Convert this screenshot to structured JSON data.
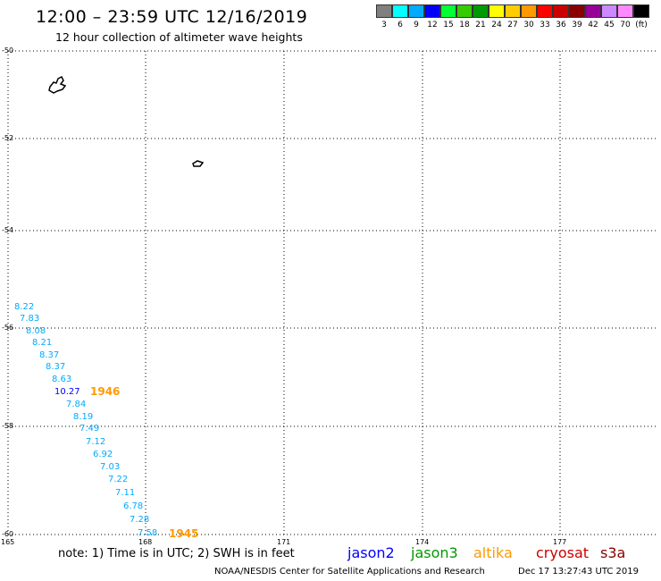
{
  "title": "12:00 – 23:59 UTC 12/16/2019",
  "subtitle": "12 hour collection of altimeter wave heights",
  "legend": {
    "colors": [
      "#808080",
      "#00ffff",
      "#00aaff",
      "#0000ff",
      "#00ff33",
      "#33cc00",
      "#009900",
      "#ffff00",
      "#ffcc00",
      "#ff9900",
      "#ff0000",
      "#cc0000",
      "#880000",
      "#990099",
      "#cc88ff",
      "#ff88ff",
      "#000000"
    ],
    "labels": [
      "3",
      "6",
      "9",
      "12",
      "15",
      "18",
      "21",
      "24",
      "27",
      "30",
      "33",
      "36",
      "39",
      "42",
      "45",
      "70",
      "(ft)"
    ]
  },
  "map": {
    "lat_labels": [
      "-50",
      "-52",
      "-54",
      "-56",
      "-58",
      "-60"
    ],
    "lon_labels": [
      "165",
      "168",
      "171",
      "174",
      "177"
    ]
  },
  "observations": [
    {
      "value": "8.22",
      "color": "#00aaff"
    },
    {
      "value": "7.83",
      "color": "#00aaff"
    },
    {
      "value": "8.08",
      "color": "#00aaff"
    },
    {
      "value": "8.21",
      "color": "#00aaff"
    },
    {
      "value": "8.37",
      "color": "#00aaff"
    },
    {
      "value": "8.37",
      "color": "#00aaff"
    },
    {
      "value": "8.63",
      "color": "#00aaff"
    },
    {
      "value": "10.27",
      "color": "#0000ff"
    },
    {
      "value": "7.84",
      "color": "#00aaff"
    },
    {
      "value": "8.19",
      "color": "#00aaff"
    },
    {
      "value": "7.49",
      "color": "#00aaff"
    },
    {
      "value": "7.12",
      "color": "#00aaff"
    },
    {
      "value": "6.92",
      "color": "#00aaff"
    },
    {
      "value": "7.03",
      "color": "#00aaff"
    },
    {
      "value": "7.22",
      "color": "#00aaff"
    },
    {
      "value": "7.11",
      "color": "#00aaff"
    },
    {
      "value": "6.78",
      "color": "#00aaff"
    },
    {
      "value": "7.28",
      "color": "#00aaff"
    },
    {
      "value": "7.58",
      "color": "#00aaff"
    }
  ],
  "time_labels": [
    {
      "text": "1946",
      "color": "#ff9900"
    },
    {
      "text": "1945",
      "color": "#ff9900"
    }
  ],
  "note": "note: 1) Time is in UTC; 2) SWH is in feet",
  "satellites": [
    {
      "name": "jason2",
      "color": "#0000ff"
    },
    {
      "name": "jason3",
      "color": "#009900"
    },
    {
      "name": "altika",
      "color": "#ff9900"
    },
    {
      "name": "cryosat",
      "color": "#cc0000"
    },
    {
      "name": "s3a",
      "color": "#880000"
    }
  ],
  "footer_left": "NOAA/NESDIS Center for Satellite Applications and Research",
  "footer_right": "Dec 17 13:27:43 UTC 2019"
}
